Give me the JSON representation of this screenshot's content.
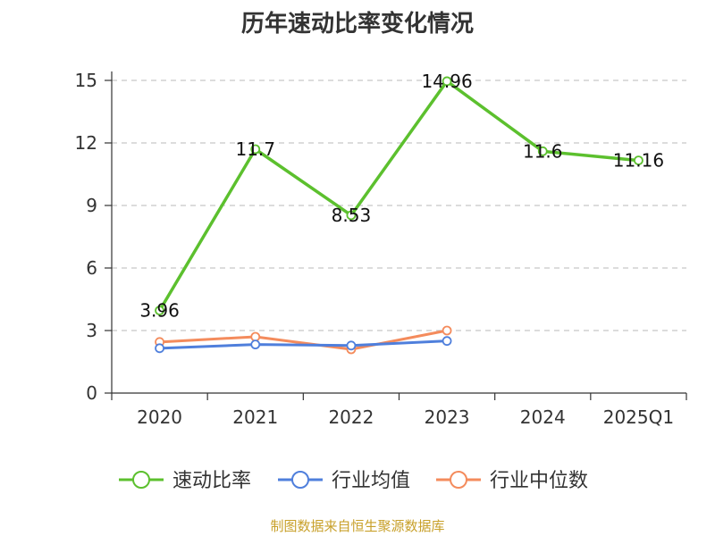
{
  "chart_data": {
    "type": "line",
    "title": "历年速动比率变化情况",
    "categories": [
      "2020",
      "2021",
      "2022",
      "2023",
      "2024",
      "2025Q1"
    ],
    "ylim": [
      0,
      15
    ],
    "yticks": [
      "0",
      "3",
      "6",
      "9",
      "12",
      "15"
    ],
    "grid": true,
    "legend_position": "bottom",
    "series": [
      {
        "name": "速动比率",
        "color": "#5cc02e",
        "values": [
          3.96,
          11.7,
          8.53,
          14.96,
          11.6,
          11.16
        ],
        "labels": [
          "3.96",
          "11.7",
          "8.53",
          "14.96",
          "11.6",
          "11.16"
        ]
      },
      {
        "name": "行业均值",
        "color": "#4f7fdc",
        "values": [
          2.15,
          2.33,
          2.28,
          2.5,
          null,
          null
        ]
      },
      {
        "name": "行业中位数",
        "color": "#f48b5c",
        "values": [
          2.45,
          2.7,
          2.1,
          3.0,
          null,
          null
        ]
      }
    ]
  },
  "source": "制图数据来自恒生聚源数据库"
}
